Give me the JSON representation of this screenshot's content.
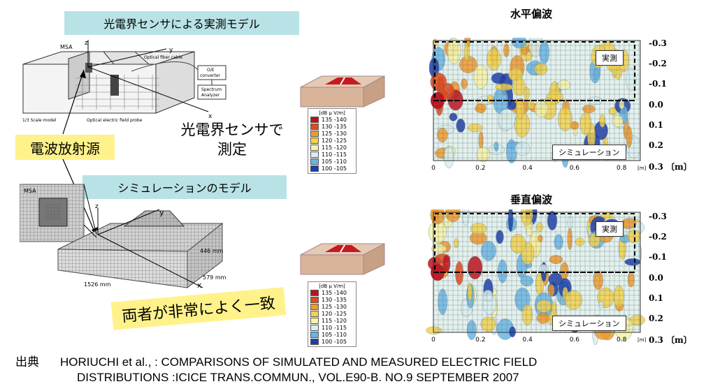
{
  "measured_model_title": "光電界センサによる実測モデル",
  "simulation_model_title": "シミュレーションのモデル",
  "radio_source_label": "電波放射源",
  "sensor_measure_label_line1": "光電界センサで",
  "sensor_measure_label_line2": "測定",
  "agreement_label": "両者が非常によく一致",
  "top_model": {
    "msa": "MSA",
    "z": "z",
    "y": "y",
    "fiber": "Optical fiber cable",
    "oe1": "O/E",
    "oe2": "converter",
    "sa1": "Spectrum",
    "sa2": "Analyzer",
    "scale": "1/3 Scale model",
    "probe": "Optical electric field probe",
    "x": "x"
  },
  "bottom_model": {
    "msa": "MSA",
    "z": "z",
    "y": "y",
    "x": "x",
    "height": "446 mm",
    "depth": "579 mm",
    "width": "1526 mm"
  },
  "legend": {
    "unit": "[dB μ V/m]",
    "items": [
      {
        "label": "135 -140",
        "color": "#c0101a"
      },
      {
        "label": "130 -135",
        "color": "#e24a1a"
      },
      {
        "label": "125 -130",
        "color": "#ef9a2e"
      },
      {
        "label": "120 -125",
        "color": "#f2d24e"
      },
      {
        "label": "115 -120",
        "color": "#f6f3a6"
      },
      {
        "label": "110 -115",
        "color": "#d8eef0"
      },
      {
        "label": "105 -110",
        "color": "#6ab4e4"
      },
      {
        "label": "100 -105",
        "color": "#1c3eab"
      }
    ]
  },
  "horizontal": {
    "title": "水平偏波",
    "measured": "実測",
    "simulation": "シミュレーション"
  },
  "vertical": {
    "title": "垂直偏波",
    "measured": "実測",
    "simulation": "シミュレーション"
  },
  "y_ticks": [
    "-0.3",
    "-0.2",
    "-0.1",
    "0.0",
    "0.1",
    "0.2",
    "0.3"
  ],
  "y_unit": "〔m〕",
  "x_ticks": [
    "0",
    "0.2",
    "0.4",
    "0.6",
    "0.8"
  ],
  "x_unit": "[m]",
  "source_label": "出典",
  "source_line1": "HORIUCHI et al., : COMPARISONS OF SIMULATED AND MEASURED ELECTRIC FIELD",
  "source_line2": "DISTRIBUTIONS :ICICE TRANS.COMMUN., VOL.E90-B. NO.9 SEPTEMBER 2007"
}
